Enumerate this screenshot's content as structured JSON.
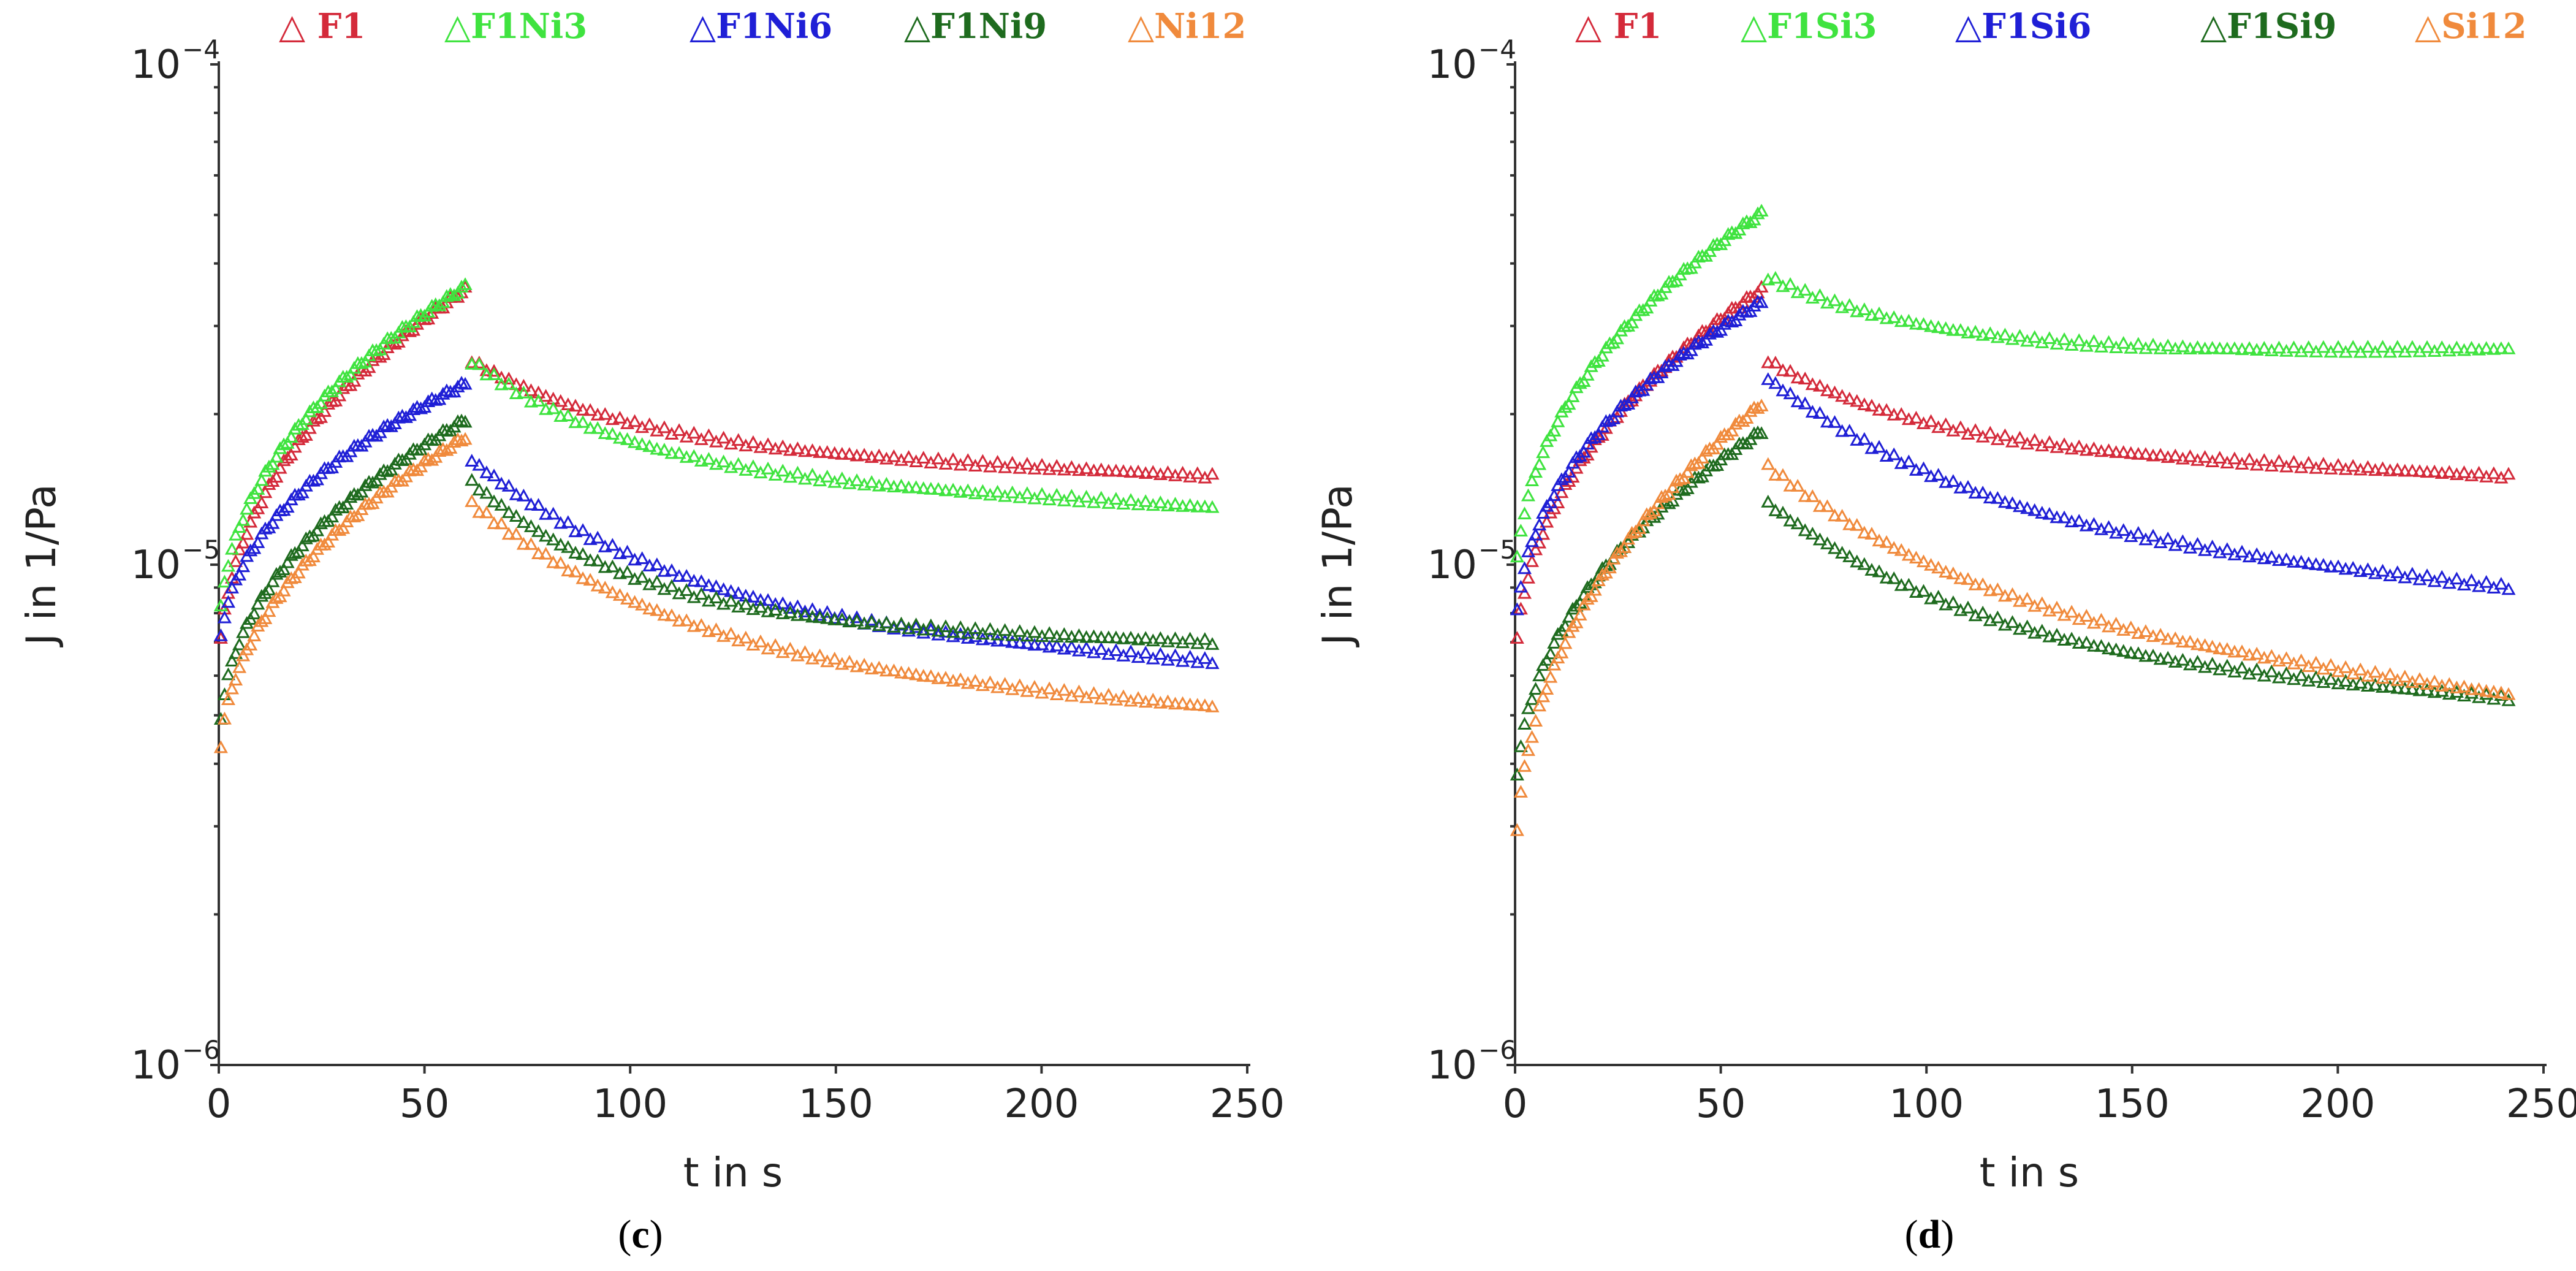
{
  "chart_data": [
    {
      "type": "scatter",
      "panel_label": "c",
      "xlabel": "t in s",
      "ylabel": "J in 1/Pa",
      "xlim": [
        0,
        250
      ],
      "ylim": [
        1e-06,
        0.0001
      ],
      "yscale": "log",
      "x_ticks": [
        "0",
        "50",
        "100",
        "150",
        "200",
        "250"
      ],
      "y_ticks": [
        {
          "base": "10",
          "exp": "−6",
          "value": 1e-06
        },
        {
          "base": "10",
          "exp": "−5",
          "value": 1e-05
        },
        {
          "base": "10",
          "exp": "−4",
          "value": 0.0001
        }
      ],
      "marker": "open-triangle",
      "grid": false,
      "legend_position": "top",
      "series": [
        {
          "name": "F1",
          "legend_label": "△ F1",
          "color": "#d42a3a",
          "creep_end": 3.55e-05,
          "creep_start": 5.5e-06,
          "recovery_start": 2.6e-05,
          "recovery_end": 1.5e-05,
          "recovery_shape": "plateau",
          "recovery_mid": 1.65e-05
        },
        {
          "name": "F1Ni3",
          "legend_label": "△F1Ni3",
          "color": "#3fe33f",
          "creep_end": 3.6e-05,
          "creep_start": 6.5e-06,
          "recovery_start": 2.6e-05,
          "recovery_end": 1.3e-05,
          "recovery_shape": "plateau",
          "recovery_mid": 1.45e-05
        },
        {
          "name": "F1Ni6",
          "legend_label": "△F1Ni6",
          "color": "#1f1fd6",
          "creep_end": 2.3e-05,
          "creep_start": 6e-06,
          "recovery_start": 1.65e-05,
          "recovery_end": 6.4e-06,
          "recovery_shape": "decay",
          "recovery_mid": 8e-06
        },
        {
          "name": "F1Ni9",
          "legend_label": "△F1Ni9",
          "color": "#1e6b1e",
          "creep_end": 1.95e-05,
          "creep_start": 4e-06,
          "recovery_start": 1.5e-05,
          "recovery_end": 7e-06,
          "recovery_shape": "plateau",
          "recovery_mid": 7.5e-06
        },
        {
          "name": "Ni12",
          "legend_label": "△Ni12",
          "color": "#f08a3c",
          "creep_end": 1.8e-05,
          "creep_start": 3.5e-06,
          "recovery_start": 1.35e-05,
          "recovery_end": 5.2e-06,
          "recovery_shape": "decay",
          "recovery_mid": 6.5e-06
        }
      ]
    },
    {
      "type": "scatter",
      "panel_label": "d",
      "xlabel": "t in s",
      "ylabel": "J in 1/Pa",
      "xlim": [
        0,
        250
      ],
      "ylim": [
        1e-06,
        0.0001
      ],
      "yscale": "log",
      "x_ticks": [
        "0",
        "50",
        "100",
        "150",
        "200",
        "250"
      ],
      "y_ticks": [
        {
          "base": "10",
          "exp": "−6",
          "value": 1e-06
        },
        {
          "base": "10",
          "exp": "−5",
          "value": 1e-05
        },
        {
          "base": "10",
          "exp": "−4",
          "value": 0.0001
        }
      ],
      "marker": "open-triangle",
      "grid": false,
      "legend_position": "top",
      "series": [
        {
          "name": "F1",
          "legend_label": "△ F1",
          "color": "#d42a3a",
          "creep_end": 3.55e-05,
          "creep_start": 5.5e-06,
          "recovery_start": 2.6e-05,
          "recovery_end": 1.5e-05,
          "recovery_shape": "plateau",
          "recovery_mid": 1.65e-05
        },
        {
          "name": "F1Si3",
          "legend_label": "△F1Si3",
          "color": "#3fe33f",
          "creep_end": 5.05e-05,
          "creep_start": 8e-06,
          "recovery_start": 3.8e-05,
          "recovery_end": 2.7e-05,
          "recovery_shape": "plateau",
          "recovery_mid": 2.65e-05
        },
        {
          "name": "F1Si6",
          "legend_label": "△F1Si6",
          "color": "#1f1fd6",
          "creep_end": 3.35e-05,
          "creep_start": 6.5e-06,
          "recovery_start": 2.4e-05,
          "recovery_end": 9e-06,
          "recovery_shape": "decay",
          "recovery_mid": 1.2e-05
        },
        {
          "name": "F1Si9",
          "legend_label": "△F1Si9",
          "color": "#1e6b1e",
          "creep_end": 1.85e-05,
          "creep_start": 3e-06,
          "recovery_start": 1.35e-05,
          "recovery_end": 5.4e-06,
          "recovery_shape": "decay",
          "recovery_mid": 6.8e-06
        },
        {
          "name": "Si12",
          "legend_label": "△Si12",
          "color": "#f08a3c",
          "creep_end": 2.1e-05,
          "creep_start": 2.2e-06,
          "recovery_start": 1.6e-05,
          "recovery_end": 5.5e-06,
          "recovery_shape": "decay",
          "recovery_mid": 8e-06
        }
      ]
    }
  ]
}
